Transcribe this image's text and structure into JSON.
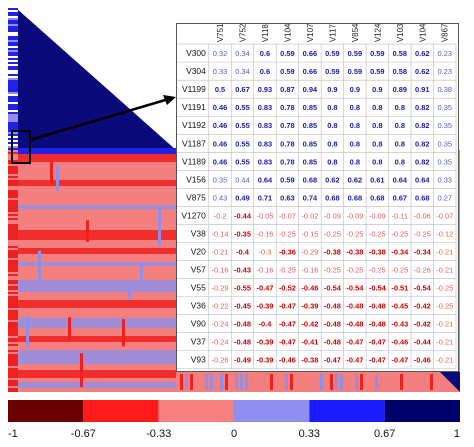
{
  "chart_data": {
    "type": "heatmap",
    "matrix_title": "",
    "columns": [
      "V751",
      "V752",
      "V1188",
      "V1045",
      "V1072",
      "V1171",
      "V854",
      "V1240",
      "V1030",
      "V1046",
      "V867"
    ],
    "rows": [
      {
        "label": "V300",
        "values": [
          0.32,
          0.34,
          0.6,
          0.59,
          0.66,
          0.59,
          0.59,
          0.59,
          0.58,
          0.62,
          0.23
        ]
      },
      {
        "label": "V304",
        "values": [
          0.33,
          0.34,
          0.6,
          0.59,
          0.66,
          0.59,
          0.59,
          0.59,
          0.58,
          0.62,
          0.23
        ]
      },
      {
        "label": "V1199",
        "values": [
          0.5,
          0.67,
          0.93,
          0.87,
          0.94,
          0.9,
          0.9,
          0.9,
          0.89,
          0.91,
          0.38
        ]
      },
      {
        "label": "V1191",
        "values": [
          0.46,
          0.55,
          0.83,
          0.78,
          0.85,
          0.8,
          0.8,
          0.8,
          0.8,
          0.82,
          0.35
        ]
      },
      {
        "label": "V1192",
        "values": [
          0.46,
          0.55,
          0.83,
          0.78,
          0.85,
          0.8,
          0.8,
          0.8,
          0.8,
          0.82,
          0.35
        ]
      },
      {
        "label": "V1187",
        "values": [
          0.46,
          0.55,
          0.83,
          0.78,
          0.85,
          0.8,
          0.8,
          0.8,
          0.8,
          0.82,
          0.35
        ]
      },
      {
        "label": "V1189",
        "values": [
          0.46,
          0.55,
          0.83,
          0.78,
          0.85,
          0.8,
          0.8,
          0.8,
          0.8,
          0.82,
          0.35
        ]
      },
      {
        "label": "V156",
        "values": [
          0.35,
          0.44,
          0.64,
          0.59,
          0.68,
          0.62,
          0.62,
          0.61,
          0.64,
          0.64,
          0.33
        ]
      },
      {
        "label": "V875",
        "values": [
          0.43,
          0.49,
          0.71,
          0.63,
          0.74,
          0.68,
          0.68,
          0.68,
          0.67,
          0.68,
          0.27
        ]
      },
      {
        "label": "V1270",
        "values": [
          -0.2,
          -0.44,
          -0.05,
          -0.07,
          -0.02,
          -0.09,
          -0.09,
          -0.09,
          -0.11,
          -0.06,
          -0.07
        ]
      },
      {
        "label": "V38",
        "values": [
          -0.14,
          -0.35,
          -0.16,
          -0.25,
          -0.15,
          -0.25,
          -0.25,
          -0.25,
          -0.25,
          -0.25,
          -0.12
        ]
      },
      {
        "label": "V20",
        "values": [
          -0.21,
          -0.4,
          -0.3,
          -0.36,
          -0.29,
          -0.38,
          -0.38,
          -0.38,
          -0.34,
          -0.34,
          -0.21
        ]
      },
      {
        "label": "V57",
        "values": [
          -0.16,
          -0.43,
          -0.16,
          -0.25,
          -0.16,
          -0.25,
          -0.25,
          -0.25,
          -0.25,
          -0.26,
          -0.21
        ]
      },
      {
        "label": "V55",
        "values": [
          -0.29,
          -0.55,
          -0.47,
          -0.52,
          -0.46,
          -0.54,
          -0.54,
          -0.54,
          -0.51,
          -0.54,
          -0.25
        ]
      },
      {
        "label": "V36",
        "values": [
          -0.22,
          -0.45,
          -0.39,
          -0.47,
          -0.39,
          -0.48,
          -0.48,
          -0.48,
          -0.45,
          -0.42,
          -0.25
        ]
      },
      {
        "label": "V90",
        "values": [
          -0.24,
          -0.48,
          -0.4,
          -0.47,
          -0.42,
          -0.48,
          -0.48,
          -0.48,
          -0.43,
          -0.42,
          -0.21
        ]
      },
      {
        "label": "V37",
        "values": [
          -0.24,
          -0.48,
          -0.39,
          -0.47,
          -0.41,
          -0.48,
          -0.47,
          -0.47,
          -0.46,
          -0.44,
          -0.21
        ]
      },
      {
        "label": "V93",
        "values": [
          -0.26,
          -0.49,
          -0.39,
          -0.46,
          -0.38,
          -0.47,
          -0.47,
          -0.47,
          -0.47,
          -0.46,
          -0.21
        ]
      }
    ],
    "legend": {
      "ticks": [
        "-1",
        "-0.67",
        "-0.33",
        "0",
        "0.33",
        "0.67",
        "1"
      ],
      "bins": [
        {
          "range": [
            -1,
            -0.67
          ],
          "color": "#6b0000"
        },
        {
          "range": [
            -0.67,
            -0.33
          ],
          "color": "#ff1a1a"
        },
        {
          "range": [
            -0.33,
            0
          ],
          "color": "#f87f7f"
        },
        {
          "range": [
            0,
            0.33
          ],
          "color": "#8f8ff0"
        },
        {
          "range": [
            0.33,
            0.67
          ],
          "color": "#1a1aff"
        },
        {
          "range": [
            0.67,
            1
          ],
          "color": "#00006b"
        }
      ]
    },
    "text_colors": {
      "strong_pos": "#1a1aa8",
      "weak_pos": "#5a5acd",
      "strong_neg": "#cc0000",
      "weak_neg": "#e06060"
    },
    "overview": {
      "upper_triangle_color": "#0a0a7a",
      "band_colors": {
        "blue": "#2222e6",
        "lightblue": "#8f8fe8",
        "salmon": "#f47f7f",
        "red": "#ee2020",
        "white": "#ffffff"
      }
    }
  }
}
